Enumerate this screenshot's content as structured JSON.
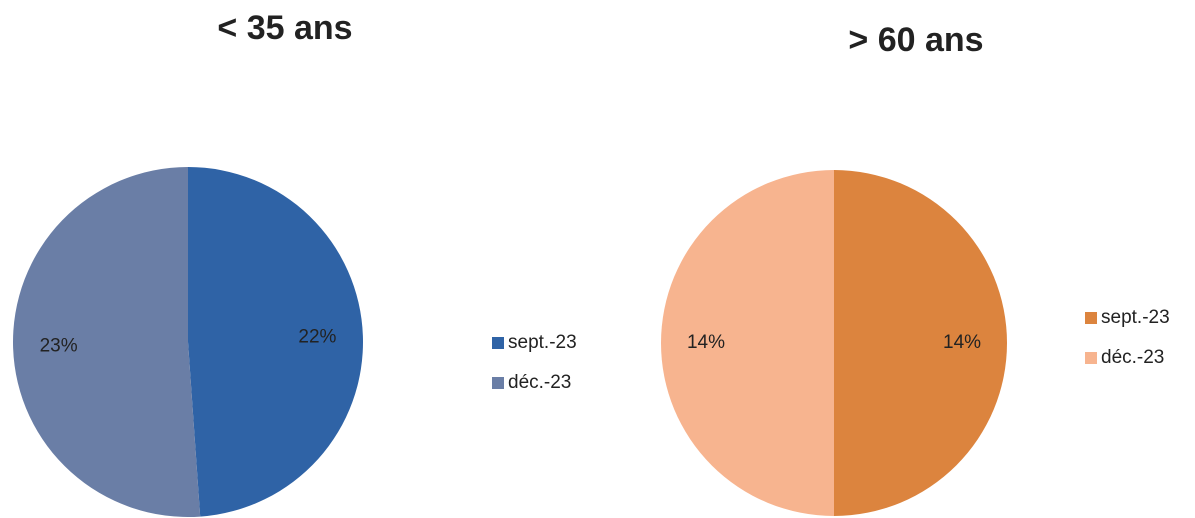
{
  "chart_data": [
    {
      "type": "pie",
      "title": "< 35 ans",
      "categories": [
        "sept.-23",
        "déc.-23"
      ],
      "values": [
        22,
        23
      ],
      "value_labels": [
        "22%",
        "23%"
      ],
      "colors": [
        "#2f63a6",
        "#6a7ea6"
      ]
    },
    {
      "type": "pie",
      "title": "> 60 ans",
      "categories": [
        "sept.-23",
        "déc.-23"
      ],
      "values": [
        14,
        14
      ],
      "value_labels": [
        "14%",
        "14%"
      ],
      "colors": [
        "#dc843e",
        "#f7b48f"
      ]
    }
  ]
}
